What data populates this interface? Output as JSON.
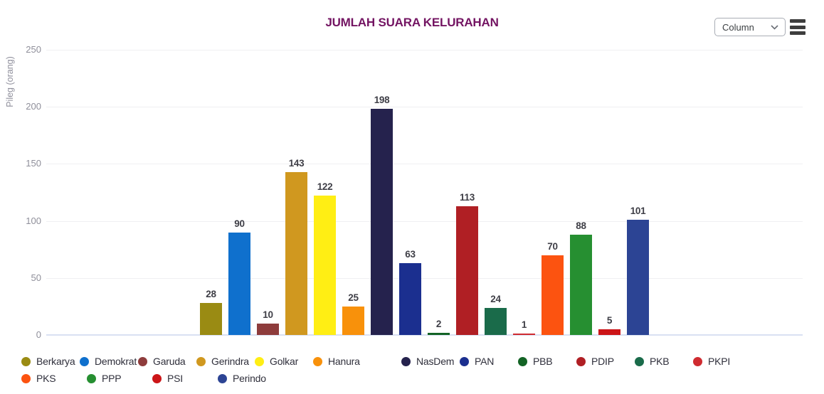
{
  "controls": {
    "chart_type_select": {
      "value": "Column"
    },
    "menu_icon": "hamburger-menu-icon"
  },
  "chart_data": {
    "type": "bar",
    "title": "JUMLAH SUARA KELURAHAN",
    "title_color": "#731462",
    "xlabel": "",
    "ylabel": "Pileg (orang)",
    "ylim": [
      0,
      250
    ],
    "yticks": [
      0,
      50,
      100,
      150,
      200,
      250
    ],
    "grid": true,
    "legend_position": "bottom",
    "legend_row_split": 12,
    "series": [
      {
        "name": "Berkarya",
        "value": 28,
        "color": "#9a8b13"
      },
      {
        "name": "Demokrat",
        "value": 90,
        "color": "#0f70cd"
      },
      {
        "name": "Garuda",
        "value": 10,
        "color": "#8e3c3c"
      },
      {
        "name": "Gerindra",
        "value": 143,
        "color": "#d0981f"
      },
      {
        "name": "Golkar",
        "value": 122,
        "color": "#ffee14"
      },
      {
        "name": "Hanura",
        "value": 25,
        "color": "#f8910b"
      },
      {
        "name": "NasDem",
        "value": 198,
        "color": "#25224d"
      },
      {
        "name": "PAN",
        "value": 63,
        "color": "#1b2f8f"
      },
      {
        "name": "PBB",
        "value": 2,
        "color": "#136325"
      },
      {
        "name": "PDIP",
        "value": 113,
        "color": "#b01f24"
      },
      {
        "name": "PKB",
        "value": 24,
        "color": "#1a6b4a"
      },
      {
        "name": "PKPI",
        "value": 1,
        "color": "#cf2b30"
      },
      {
        "name": "PKS",
        "value": 70,
        "color": "#fc5310"
      },
      {
        "name": "PPP",
        "value": 88,
        "color": "#268f31"
      },
      {
        "name": "PSI",
        "value": 5,
        "color": "#cc1518"
      },
      {
        "name": "Perindo",
        "value": 101,
        "color": "#2c4494"
      }
    ]
  }
}
